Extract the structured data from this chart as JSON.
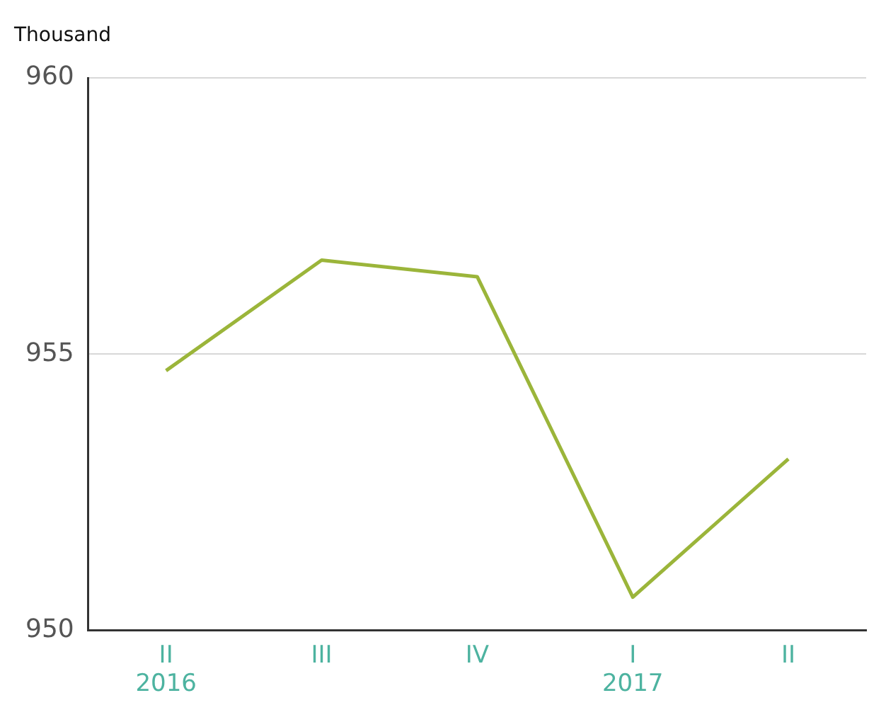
{
  "chart_data": {
    "type": "line",
    "ylabel": "Thousand",
    "categories": [
      "II\n2016",
      "III",
      "IV",
      "I\n2017",
      "II"
    ],
    "series": [
      {
        "color": "#9bb53a",
        "values": [
          954.7,
          956.7,
          956.4,
          950.6,
          953.1
        ]
      }
    ],
    "ylim": [
      950,
      960
    ],
    "yticks": [
      950,
      955,
      960
    ],
    "grid": "y",
    "legend": false,
    "marker": "none",
    "line_style": "solid"
  }
}
